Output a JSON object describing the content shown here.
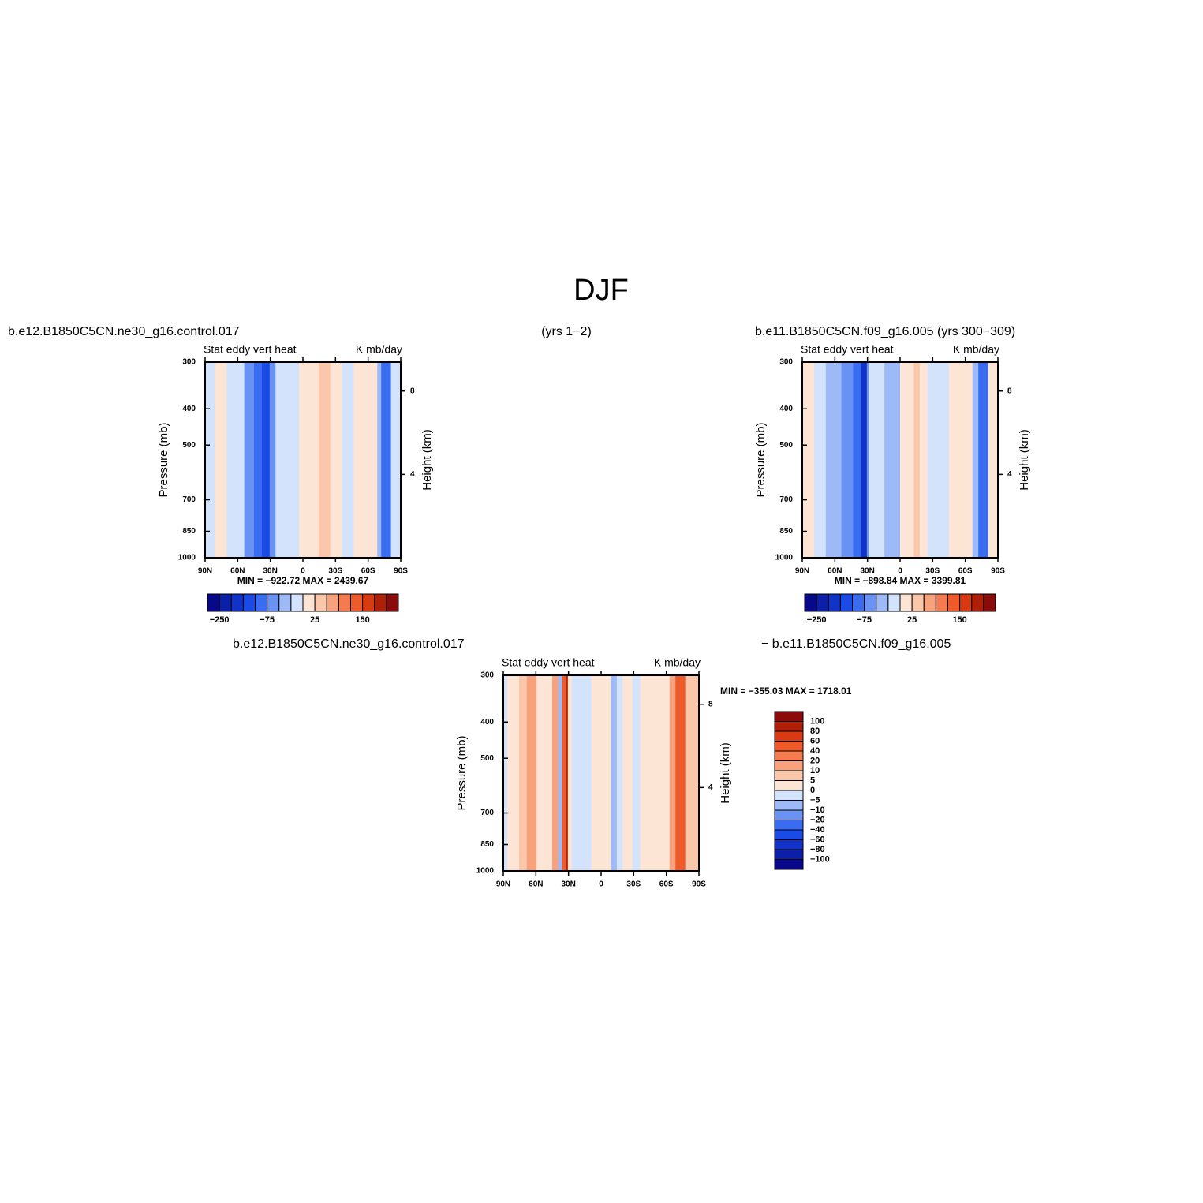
{
  "title": "DJF",
  "header": {
    "left": "b.e12.B1850C5CN.ne30_g16.control.017",
    "middle": "(yrs 1−2)",
    "right": "b.e11.B1850C5CN.f09_g16.005 (yrs 300−309)"
  },
  "diff_header": {
    "left": "b.e12.B1850C5CN.ne30_g16.control.017",
    "right": "−  b.e11.B1850C5CN.f09_g16.005"
  },
  "panels": [
    {
      "subtitle_left": "Stat eddy vert heat",
      "subtitle_right": "K mb/day",
      "ylabel": "Pressure (mb)",
      "y2label": "Height (km)",
      "ylim": [
        300,
        1000
      ],
      "yticks": [
        300,
        400,
        500,
        700,
        850,
        1000
      ],
      "y2ticks": [
        8,
        4
      ],
      "xtick_labels": [
        "90N",
        "60N",
        "30N",
        "0",
        "30S",
        "60S",
        "90S"
      ],
      "min_max": "MIN = −922.72   MAX = 2439.67",
      "colorbar": {
        "orientation": "horizontal",
        "labels": [
          "−250",
          "−75",
          "25",
          "150"
        ],
        "colors": [
          "#08088a",
          "#0c1fa8",
          "#1233c8",
          "#1a4be6",
          "#3a6cf2",
          "#6a92f5",
          "#9dbaf7",
          "#d3e3fb",
          "#fde5d6",
          "#fbc7aa",
          "#f7a27c",
          "#f47a4f",
          "#ef5a2a",
          "#d93a12",
          "#b01f08",
          "#8b0a0a"
        ]
      }
    },
    {
      "subtitle_left": "Stat eddy vert heat",
      "subtitle_right": "K mb/day",
      "ylabel": "Pressure (mb)",
      "y2label": "Height (km)",
      "ylim": [
        300,
        1000
      ],
      "yticks": [
        300,
        400,
        500,
        700,
        850,
        1000
      ],
      "y2ticks": [
        8,
        4
      ],
      "xtick_labels": [
        "90N",
        "60N",
        "30N",
        "0",
        "30S",
        "60S",
        "90S"
      ],
      "min_max": "MIN = −898.84   MAX = 3399.81",
      "colorbar": {
        "orientation": "horizontal",
        "labels": [
          "−250",
          "−75",
          "25",
          "150"
        ],
        "colors": [
          "#08088a",
          "#0c1fa8",
          "#1233c8",
          "#1a4be6",
          "#3a6cf2",
          "#6a92f5",
          "#9dbaf7",
          "#d3e3fb",
          "#fde5d6",
          "#fbc7aa",
          "#f7a27c",
          "#f47a4f",
          "#ef5a2a",
          "#d93a12",
          "#b01f08",
          "#8b0a0a"
        ]
      }
    },
    {
      "subtitle_left": "Stat eddy vert heat",
      "subtitle_right": "K mb/day",
      "ylabel": "Pressure (mb)",
      "y2label": "Height (km)",
      "ylim": [
        300,
        1000
      ],
      "yticks": [
        300,
        400,
        500,
        700,
        850,
        1000
      ],
      "y2ticks": [
        8,
        4
      ],
      "xtick_labels": [
        "90N",
        "60N",
        "30N",
        "0",
        "30S",
        "60S",
        "90S"
      ],
      "min_max": "MIN = −355.03   MAX = 1718.01",
      "colorbar": {
        "orientation": "vertical",
        "labels": [
          "100",
          "80",
          "60",
          "40",
          "20",
          "10",
          "5",
          "0",
          "−5",
          "−10",
          "−20",
          "−40",
          "−60",
          "−80",
          "−100"
        ],
        "colors": [
          "#8b0a0a",
          "#b01f08",
          "#d93a12",
          "#ef5a2a",
          "#f47a4f",
          "#f7a27c",
          "#fbc7aa",
          "#fde5d6",
          "#d3e3fb",
          "#9dbaf7",
          "#6a92f5",
          "#3a6cf2",
          "#1a4be6",
          "#1233c8",
          "#0c1fa8",
          "#08088a"
        ]
      }
    }
  ]
}
